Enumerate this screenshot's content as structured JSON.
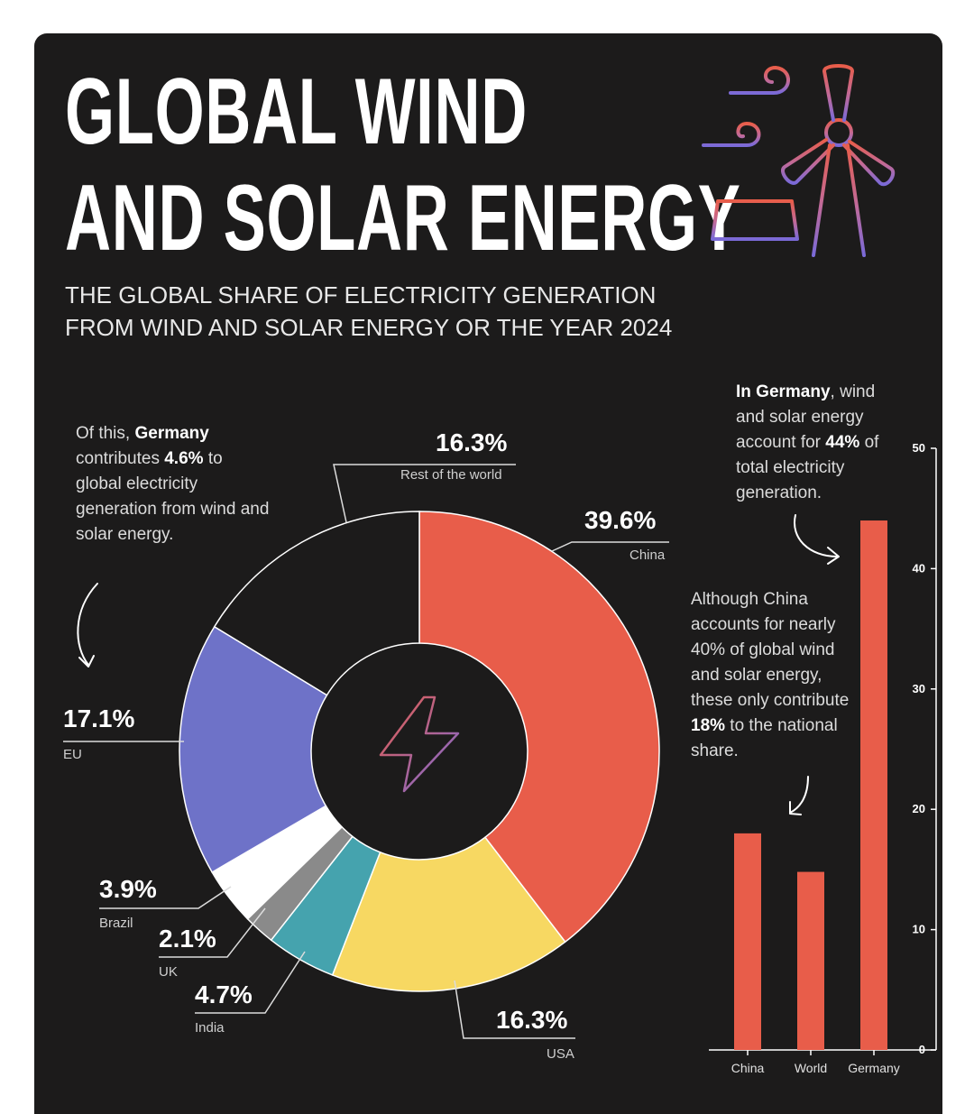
{
  "header": {
    "title_line1": "GLOBAL WIND",
    "title_line2": "AND SOLAR ENERGY",
    "subtitle_line1": "THE GLOBAL SHARE OF ELECTRICITY GENERATION",
    "subtitle_line2": "FROM WIND AND SOLAR ENERGY OR THE YEAR 2024"
  },
  "notes": {
    "germany_global": {
      "pre": "Of this, ",
      "bold1": "Germany",
      "mid1": " contributes ",
      "bold2": "4.6%",
      "post": " to global electricity generation from wind and solar energy."
    },
    "germany_national": {
      "bold1": "In Germany",
      "mid1": ", wind and solar energy account for ",
      "bold2": "44%",
      "post": " of total electricity generation."
    },
    "china_national": {
      "pre": "Although China accounts for nearly 40% of global wind and solar energy, these only contribute ",
      "bold1": "18%",
      "post": " to the national share."
    }
  },
  "chart_data": [
    {
      "type": "pie",
      "categories": [
        "China",
        "USA",
        "India",
        "UK",
        "Brazil",
        "EU",
        "Rest of the world"
      ],
      "values": [
        39.6,
        16.3,
        4.7,
        2.1,
        3.9,
        17.1,
        16.3
      ],
      "labels": [
        "39.6%",
        "16.3%",
        "4.7%",
        "2.1%",
        "3.9%",
        "17.1%",
        "16.3%"
      ],
      "colors": [
        "#e85d4a",
        "#f7d862",
        "#45a3ae",
        "#8a8a8a",
        "#ffffff",
        "#6e72c8",
        "#1c1b1b"
      ],
      "donut": true
    },
    {
      "type": "bar",
      "categories": [
        "China",
        "World",
        "Germany"
      ],
      "values": [
        18,
        14.8,
        44
      ],
      "yticks": [
        "0",
        "10",
        "20",
        "30",
        "40",
        "50"
      ],
      "ylim": [
        0,
        50
      ],
      "color": "#e85d4a"
    }
  ]
}
